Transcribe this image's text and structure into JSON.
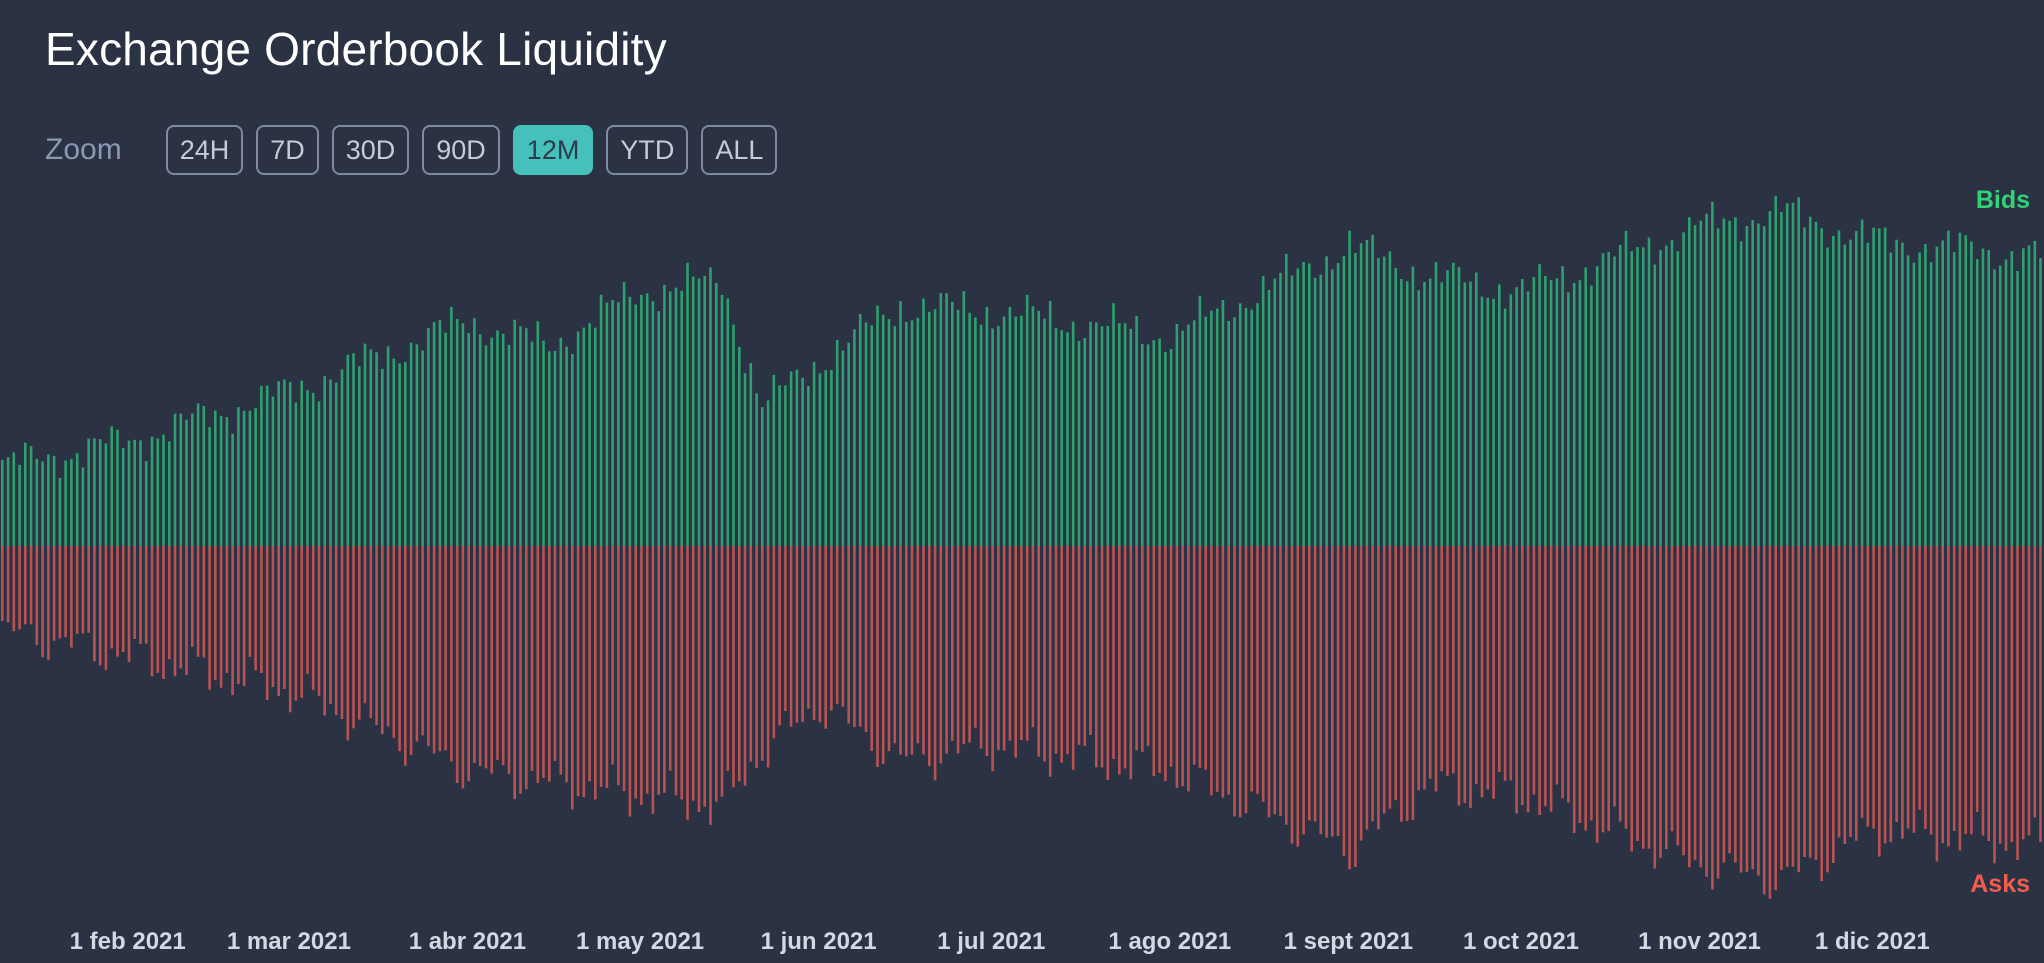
{
  "header": {
    "title": "Exchange Orderbook Liquidity"
  },
  "zoom": {
    "label": "Zoom",
    "options": [
      "24H",
      "7D",
      "30D",
      "90D",
      "12M",
      "YTD",
      "ALL"
    ],
    "selected": "12M"
  },
  "colors": {
    "background": "#2a3243",
    "bids": "#2e9f6e",
    "asks": "#b95353",
    "bids_label": "#2fd374",
    "asks_label": "#f05d4e",
    "accent": "#45c0ba"
  },
  "chart_data": {
    "type": "bar",
    "x_start": "2021-01-10",
    "x_end": "2021-12-31",
    "xlabel": "",
    "ylabel": "",
    "grid": false,
    "legend": [
      {
        "name": "Bids",
        "placement": "top-right"
      },
      {
        "name": "Asks",
        "placement": "bottom-right"
      }
    ],
    "x_tick_labels": [
      "1 feb 2021",
      "1 mar 2021",
      "1 abr 2021",
      "1 may 2021",
      "1 jun 2021",
      "1 jul 2021",
      "1 ago 2021",
      "1 sept 2021",
      "1 oct 2021",
      "1 nov 2021",
      "1 dic 2021"
    ],
    "x_tick_dates": [
      "2021-02-01",
      "2021-03-01",
      "2021-04-01",
      "2021-05-01",
      "2021-06-01",
      "2021-07-01",
      "2021-08-01",
      "2021-09-01",
      "2021-10-01",
      "2021-11-01",
      "2021-12-01"
    ],
    "ylim": [
      -370,
      350
    ],
    "series": [
      {
        "name": "Bids",
        "anchors": [
          [
            "2021-01-10",
            80
          ],
          [
            "2021-02-01",
            105
          ],
          [
            "2021-03-01",
            155
          ],
          [
            "2021-04-01",
            225
          ],
          [
            "2021-04-15",
            200
          ],
          [
            "2021-05-01",
            255
          ],
          [
            "2021-05-15",
            265
          ],
          [
            "2021-05-22",
            140
          ],
          [
            "2021-06-01",
            185
          ],
          [
            "2021-06-15",
            240
          ],
          [
            "2021-07-01",
            235
          ],
          [
            "2021-08-01",
            210
          ],
          [
            "2021-09-01",
            300
          ],
          [
            "2021-09-15",
            270
          ],
          [
            "2021-10-01",
            255
          ],
          [
            "2021-11-01",
            320
          ],
          [
            "2021-11-15",
            335
          ],
          [
            "2021-12-01",
            305
          ],
          [
            "2021-12-31",
            290
          ]
        ]
      },
      {
        "name": "Asks",
        "anchors": [
          [
            "2021-01-10",
            -85
          ],
          [
            "2021-02-01",
            -110
          ],
          [
            "2021-03-01",
            -145
          ],
          [
            "2021-04-01",
            -225
          ],
          [
            "2021-05-01",
            -250
          ],
          [
            "2021-05-15",
            -260
          ],
          [
            "2021-05-22",
            -205
          ],
          [
            "2021-06-01",
            -160
          ],
          [
            "2021-06-15",
            -215
          ],
          [
            "2021-07-01",
            -200
          ],
          [
            "2021-08-01",
            -225
          ],
          [
            "2021-09-01",
            -305
          ],
          [
            "2021-09-15",
            -240
          ],
          [
            "2021-10-01",
            -250
          ],
          [
            "2021-11-01",
            -320
          ],
          [
            "2021-11-15",
            -335
          ],
          [
            "2021-12-01",
            -285
          ],
          [
            "2021-12-31",
            -300
          ]
        ]
      }
    ]
  }
}
